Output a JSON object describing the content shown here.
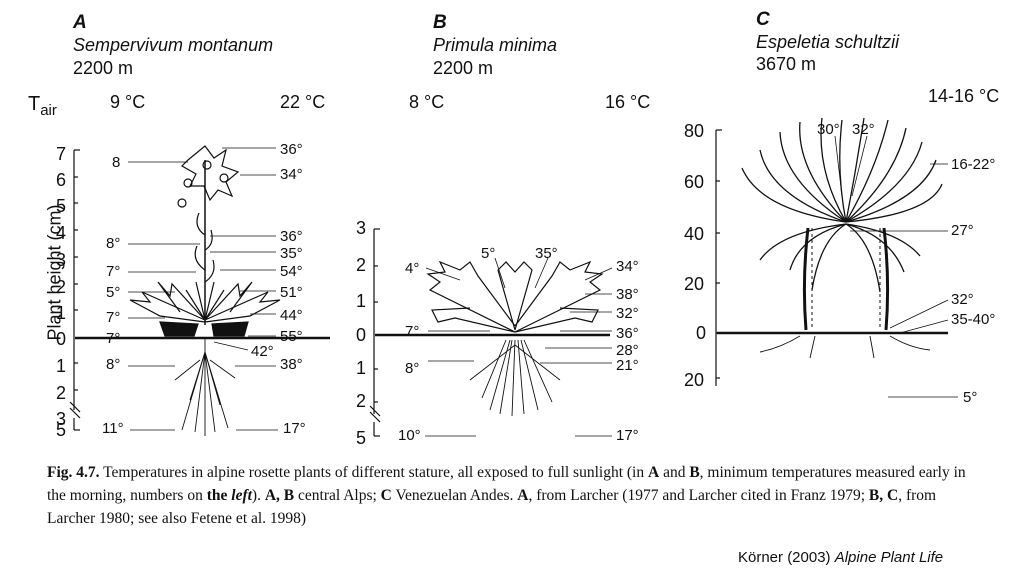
{
  "panels": [
    {
      "letter": "A",
      "species": "Sempervivum montanum",
      "altitude": "2200 m",
      "t_air_label": "T",
      "t_air_sub": "air",
      "t_min": "9 °C",
      "t_max": "22 °C",
      "axis_label": "Plant height (cm)",
      "ticks_up": [
        "7",
        "6",
        "5",
        "4",
        "3",
        "2",
        "1",
        "0"
      ],
      "ticks_down": [
        "1",
        "2",
        "3",
        "5"
      ],
      "left_temps": [
        "8",
        "8°",
        "7°",
        "5°",
        "7°",
        "7°",
        "8°",
        "11°"
      ],
      "right_temps": [
        "36°",
        "34°",
        "36°",
        "35°",
        "54°",
        "51°",
        "44°",
        "55°",
        "42°",
        "38°",
        "17°"
      ]
    },
    {
      "letter": "B",
      "species": "Primula minima",
      "altitude": "2200 m",
      "t_min": "8 °C",
      "t_max": "16 °C",
      "ticks_up": [
        "3",
        "2",
        "1",
        "0"
      ],
      "ticks_down": [
        "1",
        "2",
        "5"
      ],
      "left_temps": [
        "4°",
        "5°",
        "7°",
        "8°",
        "10°"
      ],
      "right_temps": [
        "35°",
        "34°",
        "38°",
        "32°",
        "36°",
        "28°",
        "21°",
        "17°"
      ]
    },
    {
      "letter": "C",
      "species": "Espeletia schultzii",
      "altitude": "3670 m",
      "t_range": "14-16 °C",
      "ticks_up": [
        "80",
        "60",
        "40",
        "20",
        "0"
      ],
      "ticks_down": [
        "20"
      ],
      "top_temps": [
        "30°",
        "32°"
      ],
      "right_temps": [
        "16-22°",
        "27°",
        "32°",
        "35-40°",
        "5°"
      ]
    }
  ],
  "caption": {
    "fig_label": "Fig. 4.7.",
    "text1": " Temperatures in alpine rosette plants of different stature, all exposed to full sunlight (in ",
    "A": "A",
    "and": " and ",
    "B": "B",
    "text2": ", minimum temperatures measured early in the morning, numbers on ",
    "the_left": "the",
    "left_word": "left",
    "text3": "). ",
    "AB": "A, B",
    "text4": " central Alps; ",
    "C": "C",
    "text5": " Venezuelan Andes. ",
    "A2": "A",
    "text6": ", from Larcher (1977 and Larcher cited in Franz 1979; ",
    "BC": "B, C",
    "text7": ", from Larcher 1980; see also Fetene et al. 1998)"
  },
  "credit": {
    "authors": "Körner (2003) ",
    "title": "Alpine Plant Life"
  }
}
